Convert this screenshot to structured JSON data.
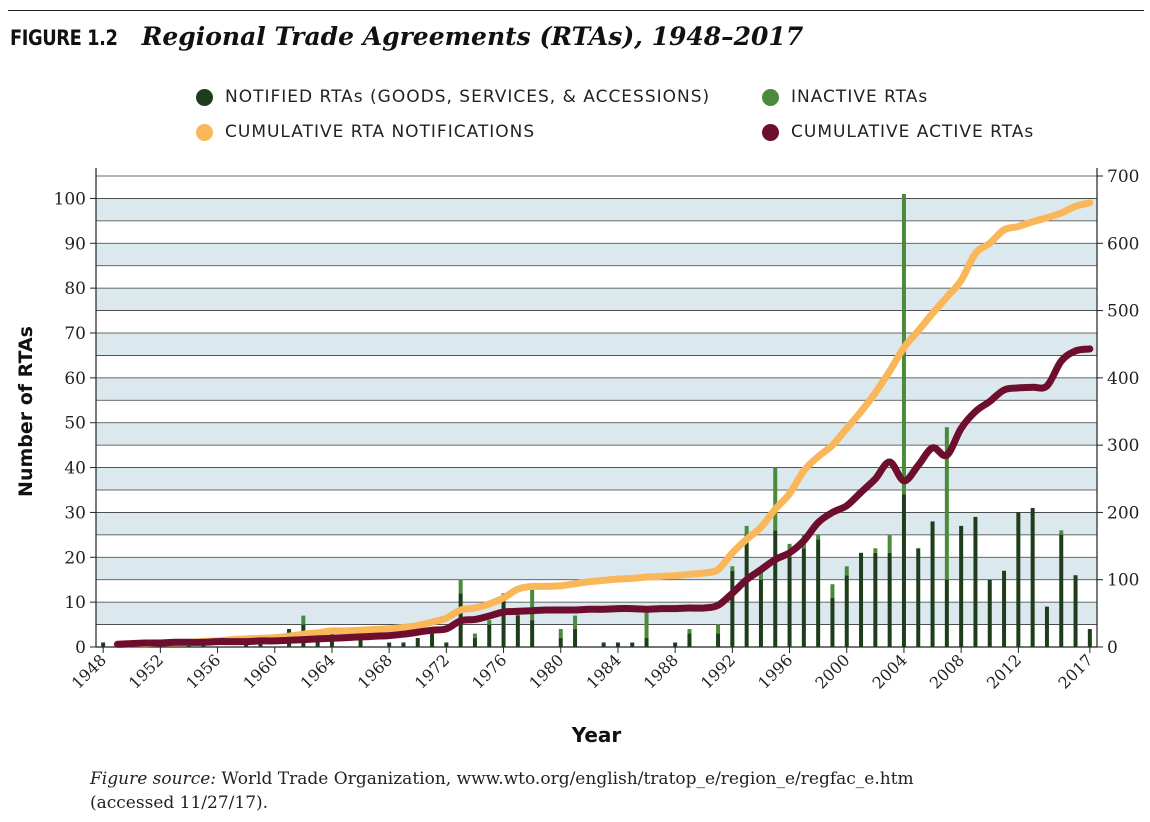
{
  "figure": {
    "label": "FIGURE 1.2",
    "title": "Regional Trade Agreements (RTAs), 1948–2017"
  },
  "legend": [
    {
      "label": "NOTIFIED RTAs (GOODS, SERVICES, & ACCESSIONS)",
      "color": "#1f3d1c"
    },
    {
      "label": "INACTIVE RTAs",
      "color": "#4a8a3a"
    },
    {
      "label": "CUMULATIVE RTA NOTIFICATIONS",
      "color": "#f9b75a"
    },
    {
      "label": "CUMULATIVE ACTIVE RTAs",
      "color": "#6e0e2e"
    }
  ],
  "source": {
    "label": "Figure source:",
    "text": "World Trade Organization, www.wto.org/english/tratop_e/region_e/regfac_e.htm",
    "accessed": "(accessed 11/27/17)."
  },
  "chart_data": {
    "type": "bar",
    "xlabel": "Year",
    "ylabel": "Number of RTAs",
    "ylim": [
      0,
      105
    ],
    "y2lim": [
      0,
      700
    ],
    "yticks": [
      0,
      10,
      20,
      30,
      40,
      50,
      60,
      70,
      80,
      90,
      100
    ],
    "y2ticks": [
      0,
      100,
      200,
      300,
      400,
      500,
      600,
      700
    ],
    "xticks": [
      1948,
      1952,
      1956,
      1960,
      1964,
      1968,
      1972,
      1976,
      1980,
      1984,
      1988,
      1992,
      1996,
      2000,
      2004,
      2008,
      2012,
      2017
    ],
    "grid": true,
    "x": [
      1948,
      1949,
      1950,
      1951,
      1952,
      1953,
      1954,
      1955,
      1956,
      1957,
      1958,
      1959,
      1960,
      1961,
      1962,
      1963,
      1964,
      1965,
      1966,
      1967,
      1968,
      1969,
      1970,
      1971,
      1972,
      1973,
      1974,
      1975,
      1976,
      1977,
      1978,
      1979,
      1980,
      1981,
      1982,
      1983,
      1984,
      1985,
      1986,
      1987,
      1988,
      1989,
      1990,
      1991,
      1992,
      1993,
      1994,
      1995,
      1996,
      1997,
      1998,
      1999,
      2000,
      2001,
      2002,
      2003,
      2004,
      2005,
      2006,
      2007,
      2008,
      2009,
      2010,
      2011,
      2012,
      2013,
      2014,
      2015,
      2016,
      2017
    ],
    "series": [
      {
        "name": "NOTIFIED RTAs (GOODS, SERVICES, & ACCESSIONS)",
        "axis": "left",
        "kind": "bar",
        "values": [
          1,
          0,
          0,
          0,
          0,
          0,
          1,
          1,
          0,
          0,
          2,
          1,
          0,
          4,
          5,
          2,
          4,
          0,
          2,
          0,
          1,
          1,
          2,
          3,
          1,
          12,
          2,
          5,
          11,
          7,
          6,
          0,
          2,
          4,
          0,
          1,
          1,
          1,
          2,
          0,
          1,
          3,
          0,
          3,
          17,
          25,
          15,
          26,
          20,
          22,
          24,
          11,
          16,
          21,
          21,
          21,
          34,
          22,
          28,
          15,
          27,
          29,
          15,
          17,
          30,
          31,
          9,
          25,
          16,
          4
        ]
      },
      {
        "name": "INACTIVE RTAs",
        "axis": "left",
        "kind": "bar",
        "values": [
          0,
          0,
          0,
          0,
          0,
          0,
          0,
          0,
          0,
          0,
          0,
          1,
          0,
          0,
          2,
          0,
          0,
          0,
          0,
          0,
          0,
          0,
          0,
          1,
          0,
          3,
          1,
          1,
          1,
          1,
          7,
          0,
          2,
          3,
          0,
          0,
          0,
          0,
          6,
          0,
          0,
          1,
          0,
          2,
          1,
          2,
          2,
          14,
          3,
          3,
          1,
          3,
          2,
          0,
          1,
          4,
          67,
          0,
          0,
          34,
          0,
          0,
          0,
          0,
          0,
          0,
          0,
          1,
          0,
          0
        ]
      },
      {
        "name": "CUMULATIVE RTA NOTIFICATIONS",
        "axis": "right",
        "kind": "line",
        "values": [
          3,
          4,
          5,
          5,
          6,
          6,
          7,
          8,
          9,
          11,
          12,
          13,
          14,
          16,
          19,
          21,
          24,
          24,
          25,
          26,
          27,
          29,
          32,
          37,
          43,
          55,
          58,
          64,
          73,
          86,
          90,
          90,
          91,
          94,
          97,
          99,
          101,
          102,
          104,
          105,
          106,
          108,
          110,
          115,
          140,
          160,
          178,
          205,
          228,
          262,
          283,
          300,
          325,
          350,
          378,
          410,
          445,
          470,
          496,
          520,
          545,
          585,
          600,
          620,
          625,
          632,
          638,
          645,
          655,
          660
        ]
      },
      {
        "name": "CUMULATIVE ACTIVE RTAs",
        "axis": "right",
        "kind": "line",
        "values": [
          3,
          4,
          5,
          6,
          6,
          7,
          7,
          7,
          8,
          8,
          8,
          9,
          9,
          10,
          11,
          12,
          13,
          14,
          15,
          16,
          17,
          19,
          22,
          25,
          27,
          39,
          41,
          46,
          52,
          53,
          54,
          55,
          55,
          55,
          56,
          56,
          57,
          57,
          56,
          57,
          57,
          58,
          58,
          62,
          80,
          100,
          115,
          130,
          140,
          158,
          185,
          200,
          210,
          230,
          250,
          275,
          247,
          270,
          296,
          285,
          325,
          350,
          365,
          382,
          385,
          386,
          388,
          425,
          440,
          443
        ]
      }
    ]
  }
}
